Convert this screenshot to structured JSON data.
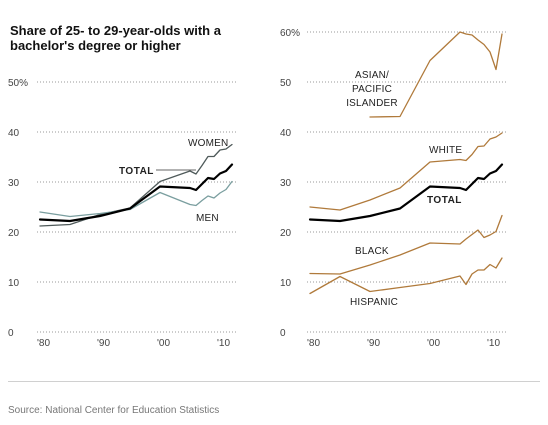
{
  "title": "Share of 25- to 29-year-olds with a bachelor's degree or higher",
  "source": "Source: National Center for Education Statistics",
  "colors": {
    "gender": "#333333",
    "men": "#7a9e9f",
    "women": "#4f5a5a",
    "race": "#b07a3b",
    "total": "#000000"
  },
  "chart_data": [
    {
      "type": "line",
      "title": "Share of 25- to 29-year-olds with a bachelor's degree or higher",
      "xlabel": "",
      "ylabel": "",
      "xlim": [
        1979.5,
        2013
      ],
      "ylim": [
        0,
        50
      ],
      "grid": true,
      "y_ticks": [
        0,
        10,
        20,
        30,
        40,
        50
      ],
      "y_tick_labels": [
        "0",
        "10",
        "20",
        "30",
        "40",
        "50%"
      ],
      "x_ticks": [
        1980,
        1990,
        2000,
        2010
      ],
      "x_tick_labels": [
        "'80",
        "'90",
        "'00",
        "'10"
      ],
      "series": [
        {
          "name": "WOMEN",
          "color": "#4f5a5a",
          "width": 1.3,
          "x": [
            1980,
            1985,
            1990,
            1995,
            2000,
            2005,
            2006,
            2007,
            2008,
            2009,
            2010,
            2011,
            2012
          ],
          "y": [
            21.2,
            21.5,
            23.5,
            24.8,
            30.1,
            32.2,
            31.6,
            33.3,
            35.1,
            35.1,
            36.4,
            36.6,
            37.5
          ]
        },
        {
          "name": "MEN",
          "color": "#7a9e9f",
          "width": 1.3,
          "x": [
            1980,
            1985,
            1990,
            1995,
            2000,
            2005,
            2006,
            2007,
            2008,
            2009,
            2010,
            2011,
            2012
          ],
          "y": [
            24.0,
            23.1,
            23.7,
            24.5,
            27.9,
            25.5,
            25.3,
            26.3,
            27.2,
            26.8,
            27.8,
            28.5,
            30.1
          ]
        },
        {
          "name": "TOTAL",
          "color": "#000000",
          "width": 2.2,
          "x": [
            1980,
            1985,
            1990,
            1995,
            2000,
            2005,
            2006,
            2007,
            2008,
            2009,
            2010,
            2011,
            2012
          ],
          "y": [
            22.5,
            22.2,
            23.2,
            24.7,
            29.1,
            28.8,
            28.4,
            29.6,
            30.8,
            30.6,
            31.7,
            32.2,
            33.5
          ]
        }
      ]
    },
    {
      "type": "line",
      "xlabel": "",
      "ylabel": "",
      "xlim": [
        1979.5,
        2013
      ],
      "ylim": [
        0,
        60
      ],
      "grid": true,
      "y_ticks": [
        0,
        10,
        20,
        30,
        40,
        50,
        60
      ],
      "y_tick_labels": [
        "0",
        "10",
        "20",
        "30",
        "40",
        "50",
        "60%"
      ],
      "x_ticks": [
        1980,
        1990,
        2000,
        2010
      ],
      "x_tick_labels": [
        "'80",
        "'90",
        "'00",
        "'10"
      ],
      "series": [
        {
          "name": "ASIAN/ PACIFIC ISLANDER",
          "color": "#b07a3b",
          "width": 1.3,
          "x": [
            1990,
            1995,
            2000,
            2005,
            2006,
            2007,
            2008,
            2009,
            2010,
            2011,
            2012
          ],
          "y": [
            43.0,
            43.1,
            54.3,
            60.0,
            59.6,
            59.4,
            58.4,
            57.5,
            56.0,
            52.5,
            59.6
          ]
        },
        {
          "name": "WHITE",
          "color": "#b07a3b",
          "width": 1.3,
          "x": [
            1980,
            1985,
            1990,
            1995,
            2000,
            2005,
            2006,
            2007,
            2008,
            2009,
            2010,
            2011,
            2012
          ],
          "y": [
            25.0,
            24.4,
            26.4,
            28.8,
            34.0,
            34.5,
            34.3,
            35.5,
            37.1,
            37.2,
            38.6,
            39.0,
            39.8
          ]
        },
        {
          "name": "TOTAL",
          "color": "#000000",
          "width": 2.2,
          "x": [
            1980,
            1985,
            1990,
            1995,
            2000,
            2005,
            2006,
            2007,
            2008,
            2009,
            2010,
            2011,
            2012
          ],
          "y": [
            22.5,
            22.2,
            23.2,
            24.7,
            29.1,
            28.8,
            28.4,
            29.6,
            30.8,
            30.6,
            31.7,
            32.2,
            33.5
          ]
        },
        {
          "name": "BLACK",
          "color": "#b07a3b",
          "width": 1.3,
          "x": [
            1980,
            1985,
            1990,
            1995,
            2000,
            2005,
            2006,
            2007,
            2008,
            2009,
            2010,
            2011,
            2012
          ],
          "y": [
            11.7,
            11.6,
            13.4,
            15.4,
            17.8,
            17.6,
            18.6,
            19.5,
            20.4,
            18.9,
            19.4,
            20.1,
            23.3
          ]
        },
        {
          "name": "HISPANIC",
          "color": "#b07a3b",
          "width": 1.3,
          "x": [
            1980,
            1985,
            1990,
            1995,
            2000,
            2005,
            2006,
            2007,
            2008,
            2009,
            2010,
            2011,
            2012
          ],
          "y": [
            7.7,
            11.1,
            8.1,
            8.9,
            9.7,
            11.2,
            9.5,
            11.6,
            12.4,
            12.4,
            13.5,
            12.8,
            14.8
          ]
        }
      ]
    }
  ]
}
